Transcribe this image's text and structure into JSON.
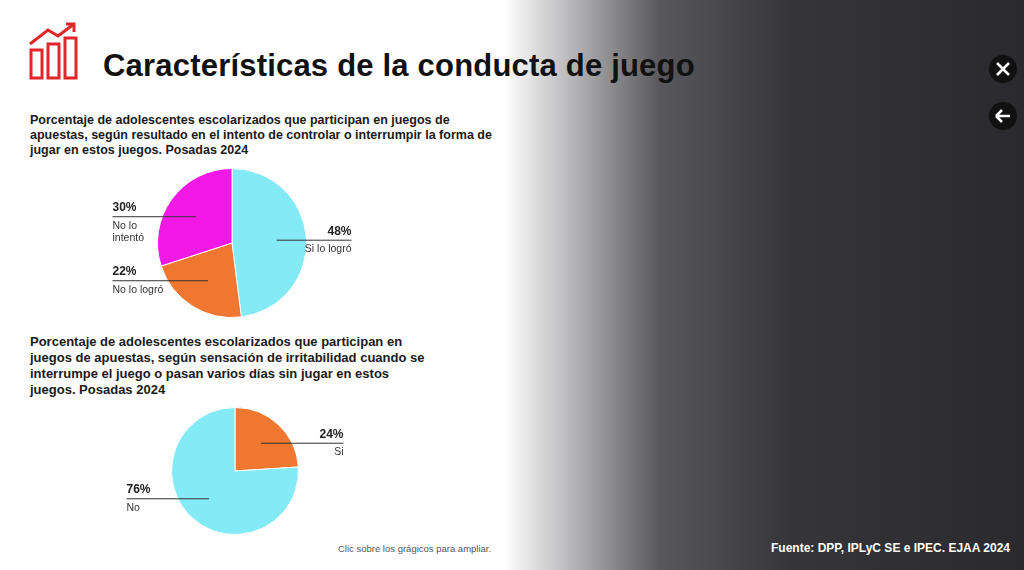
{
  "header": {
    "title": "Características de la conducta de juego"
  },
  "chart_data": [
    {
      "type": "pie",
      "title": "Porcentaje de adolescentes escolarizados que participan en juegos de apuestas, según resultado en el intento de controlar o interrumpir la forma de jugar en estos juegos. Posadas 2024",
      "categories": [
        "Si lo logró",
        "No lo logró",
        "No lo intentó"
      ],
      "values": [
        48,
        22,
        30
      ],
      "value_labels": [
        "48%",
        "22%",
        "30%"
      ],
      "colors": [
        "#84eaf5",
        "#f0772f",
        "#f219e6"
      ],
      "data_labels": true
    },
    {
      "type": "pie",
      "title": "Porcentaje de adolescentes escolarizados que participan en juegos de apuestas, según sensación de irritabilidad cuando se interrumpe el juego o pasan varios días sin jugar en estos juegos. Posadas 2024",
      "categories": [
        "Si",
        "No"
      ],
      "values": [
        24,
        76
      ],
      "value_labels": [
        "24%",
        "76%"
      ],
      "colors": [
        "#f0772f",
        "#84eaf5"
      ],
      "data_labels": true
    }
  ],
  "note": "Clic sobre los grágicos para ampliar.",
  "source": "Fuente: DPP, IPLyC SE e IPEC. EJAA 2024"
}
